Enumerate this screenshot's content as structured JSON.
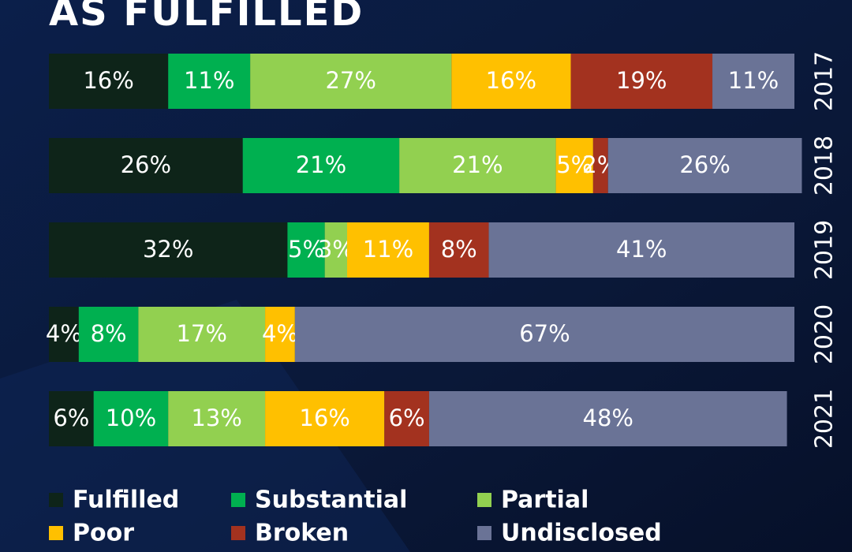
{
  "chart_data": {
    "type": "bar",
    "orientation": "horizontal",
    "stacked": true,
    "title": "AS FULFILLED",
    "categories": [
      "2017",
      "2018",
      "2019",
      "2020",
      "2021"
    ],
    "series": [
      {
        "name": "Fulfilled",
        "color": "#0e2419",
        "values": [
          16,
          26,
          32,
          4,
          6
        ],
        "value_labels": [
          "16%",
          "26%",
          "32%",
          "4%",
          "6%"
        ]
      },
      {
        "name": "Substantial",
        "color": "#00b050",
        "values": [
          11,
          21,
          5,
          8,
          10
        ],
        "value_labels": [
          "11%",
          "21%",
          "5%",
          "8%",
          "10%"
        ]
      },
      {
        "name": "Partial",
        "color": "#92d050",
        "values": [
          27,
          21,
          3,
          17,
          13
        ],
        "value_labels": [
          "27%",
          "21%",
          "3%",
          "17%",
          "13%"
        ]
      },
      {
        "name": "Poor",
        "color": "#ffc000",
        "values": [
          16,
          5,
          11,
          4,
          16
        ],
        "value_labels": [
          "16%",
          "5%",
          "11%",
          "4%",
          "16%"
        ]
      },
      {
        "name": "Broken",
        "color": "#a3321f",
        "values": [
          19,
          2,
          8,
          0,
          6
        ],
        "value_labels": [
          "19%",
          "2%",
          "8%",
          null,
          "6%"
        ]
      },
      {
        "name": "Undisclosed",
        "color": "#6a7396",
        "values": [
          11,
          26,
          41,
          67,
          48
        ],
        "value_labels": [
          "11%",
          "26%",
          "41%",
          "67%",
          "48%"
        ]
      }
    ]
  }
}
